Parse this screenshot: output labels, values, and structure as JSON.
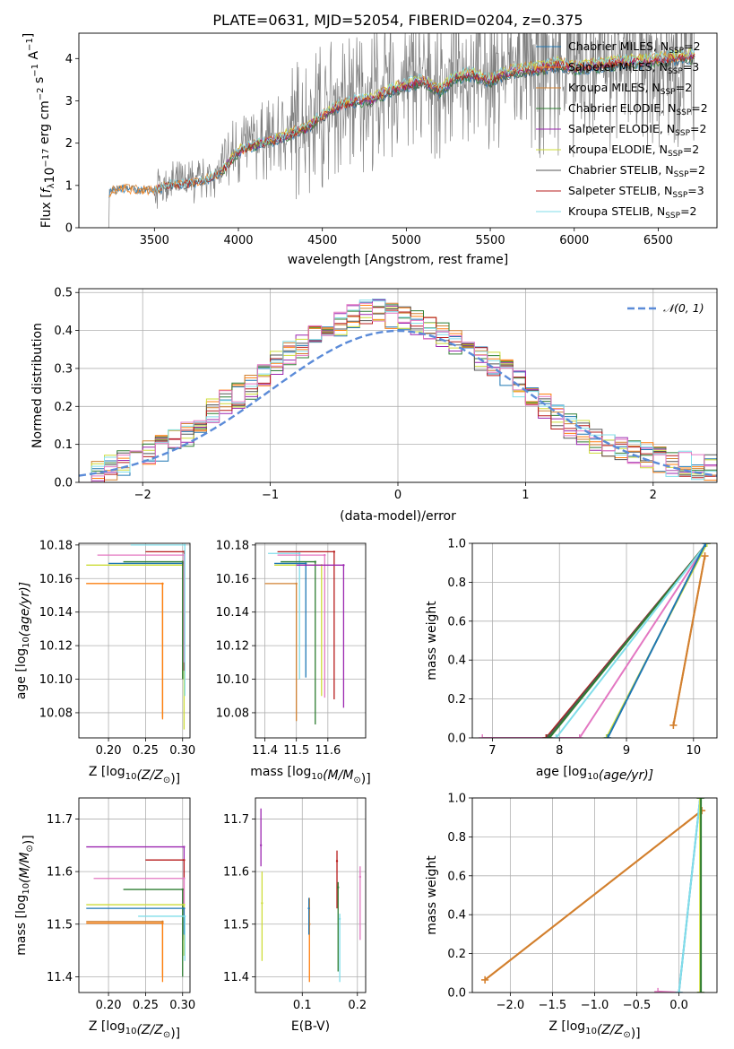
{
  "figure": {
    "title": "PLATE=0631, MJD=52054, FIBERID=0204, z=0.375"
  },
  "colors": {
    "chabrier_miles": "#1f77b4",
    "salpeter_miles": "#ff7f0e",
    "kroupa_miles": "#d08030",
    "chabrier_elodie": "#2e7d32",
    "salpeter_elodie": "#9c27b0",
    "kroupa_elodie": "#cddc39",
    "chabrier_stelib": "#555555",
    "salpeter_stelib": "#b71c1c",
    "kroupa_stelib": "#80deea",
    "pink": "#e377c2",
    "data": "#808080",
    "gauss": "#5b8bd8"
  },
  "chart_data": [
    {
      "id": "spectrum",
      "type": "line",
      "title": "PLATE=0631, MJD=52054, FIBERID=0204, z=0.375",
      "xlabel": "wavelength [Angstrom, rest frame]",
      "ylabel_parts": {
        "a": "Flux [",
        "b": "f",
        "c": "λ",
        "d": "10",
        "e": "−17",
        "f": " erg cm",
        "g": "−2",
        "h": " s",
        "i": "−1",
        "j": " A",
        "k": "−1",
        "l": "]"
      },
      "xlim": [
        3050,
        6850
      ],
      "ylim": [
        0,
        4.6
      ],
      "xticks": [
        3500,
        4000,
        4500,
        5000,
        5500,
        6000,
        6500
      ],
      "yticks": [
        0,
        1,
        2,
        3,
        4
      ],
      "grid": false,
      "legend_position": "top-right",
      "continuum": [
        [
          3230,
          0.85
        ],
        [
          3300,
          0.95
        ],
        [
          3400,
          0.9
        ],
        [
          3500,
          0.9
        ],
        [
          3600,
          1.05
        ],
        [
          3700,
          1.05
        ],
        [
          3800,
          1.15
        ],
        [
          3900,
          1.35
        ],
        [
          4000,
          1.85
        ],
        [
          4100,
          2.0
        ],
        [
          4200,
          2.1
        ],
        [
          4300,
          2.25
        ],
        [
          4400,
          2.4
        ],
        [
          4500,
          2.7
        ],
        [
          4600,
          2.95
        ],
        [
          4700,
          3.05
        ],
        [
          4800,
          3.1
        ],
        [
          4900,
          3.3
        ],
        [
          5000,
          3.45
        ],
        [
          5100,
          3.55
        ],
        [
          5200,
          3.3
        ],
        [
          5300,
          3.65
        ],
        [
          5400,
          3.7
        ],
        [
          5500,
          3.55
        ],
        [
          5600,
          3.75
        ],
        [
          5700,
          3.8
        ],
        [
          5800,
          3.85
        ],
        [
          5900,
          3.95
        ],
        [
          6000,
          3.85
        ],
        [
          6100,
          3.9
        ],
        [
          6200,
          3.95
        ],
        [
          6300,
          4.0
        ],
        [
          6400,
          4.0
        ],
        [
          6500,
          4.05
        ],
        [
          6600,
          4.1
        ],
        [
          6720,
          4.15
        ]
      ],
      "legend": [
        {
          "key": "chabrier_miles",
          "label": "Chabrier MILES, N",
          "sub": "SSP",
          "tail": "=2"
        },
        {
          "key": "salpeter_miles",
          "label": "Salpeter MILES, N",
          "sub": "SSP",
          "tail": "=3"
        },
        {
          "key": "kroupa_miles",
          "label": "Kroupa MILES, N",
          "sub": "SSP",
          "tail": "=2"
        },
        {
          "key": "chabrier_elodie",
          "label": "Chabrier ELODIE, N",
          "sub": "SSP",
          "tail": "=2"
        },
        {
          "key": "salpeter_elodie",
          "label": "Salpeter ELODIE, N",
          "sub": "SSP",
          "tail": "=2"
        },
        {
          "key": "kroupa_elodie",
          "label": "Kroupa ELODIE, N",
          "sub": "SSP",
          "tail": "=2"
        },
        {
          "key": "chabrier_stelib",
          "label": "Chabrier STELIB, N",
          "sub": "SSP",
          "tail": "=2"
        },
        {
          "key": "salpeter_stelib",
          "label": "Salpeter STELIB, N",
          "sub": "SSP",
          "tail": "=3"
        },
        {
          "key": "kroupa_stelib",
          "label": "Kroupa STELIB, N",
          "sub": "SSP",
          "tail": "=2"
        }
      ]
    },
    {
      "id": "residuals",
      "type": "line",
      "xlabel": "(data-model)/error",
      "ylabel": "Normed distribution",
      "xlim": [
        -2.5,
        2.5
      ],
      "ylim": [
        0,
        0.51
      ],
      "xticks": [
        -2,
        -1,
        0,
        1,
        2
      ],
      "yticks": [
        0.0,
        0.1,
        0.2,
        0.3,
        0.4,
        0.5
      ],
      "grid": true,
      "legend_position": "top-right",
      "gauss_legend": "𝒩(0, 1)",
      "bin_edges_start": -2.5,
      "bin_width": 0.1,
      "base_histogram": [
        0.02,
        0.03,
        0.04,
        0.05,
        0.06,
        0.08,
        0.09,
        0.11,
        0.13,
        0.16,
        0.19,
        0.21,
        0.23,
        0.25,
        0.28,
        0.31,
        0.34,
        0.36,
        0.38,
        0.4,
        0.42,
        0.44,
        0.45,
        0.45,
        0.44,
        0.43,
        0.42,
        0.41,
        0.39,
        0.37,
        0.35,
        0.33,
        0.31,
        0.29,
        0.26,
        0.23,
        0.2,
        0.17,
        0.15,
        0.13,
        0.11,
        0.1,
        0.09,
        0.08,
        0.07,
        0.06,
        0.05,
        0.05,
        0.04,
        0.04
      ]
    },
    {
      "id": "age_vs_Z",
      "type": "scatter",
      "xlabel_parts": {
        "a": "Z [log",
        "b": "10",
        "c": "(Z/Z",
        "d": "⊙",
        "e": ")]"
      },
      "ylabel_parts": {
        "a": "age  [log",
        "b": "10",
        "c": "(age/yr)]"
      },
      "xlim": [
        0.16,
        0.31
      ],
      "ylim": [
        10.065,
        10.181
      ],
      "xticks": [
        0.2,
        0.25,
        0.3
      ],
      "yticks": [
        10.08,
        10.1,
        10.12,
        10.14,
        10.16,
        10.18
      ],
      "grid": true,
      "points": [
        {
          "key": "kroupa_miles",
          "x": 0.273,
          "y": 10.157,
          "x_lo": 0.17,
          "y_lo": 10.077
        },
        {
          "key": "salpeter_miles",
          "x": 0.273,
          "y": 10.157,
          "x_lo": 0.17,
          "y_lo": 10.076
        },
        {
          "key": "chabrier_miles",
          "x": 0.302,
          "y": 10.169,
          "x_lo": 0.2,
          "y_lo": 10.1
        },
        {
          "key": "kroupa_elodie",
          "x": 0.302,
          "y": 10.168,
          "x_lo": 0.17,
          "y_lo": 10.07
        },
        {
          "key": "chabrier_elodie",
          "x": 0.3,
          "y": 10.17,
          "x_lo": 0.22,
          "y_lo": 10.1
        },
        {
          "key": "salpeter_stelib",
          "x": 0.302,
          "y": 10.176,
          "x_lo": 0.25,
          "y_lo": 10.105
        },
        {
          "key": "pink",
          "x": 0.302,
          "y": 10.174,
          "x_lo": 0.185,
          "y_lo": 10.11
        },
        {
          "key": "kroupa_stelib",
          "x": 0.303,
          "y": 10.18,
          "x_lo": 0.23,
          "y_lo": 10.09
        }
      ]
    },
    {
      "id": "age_vs_mass",
      "type": "scatter",
      "xlabel_parts": {
        "a": "mass [log",
        "b": "10",
        "c": "(M/M",
        "d": "⊙",
        "e": ")]"
      },
      "xlim": [
        11.37,
        11.72
      ],
      "ylim": [
        10.065,
        10.181
      ],
      "xticks": [
        11.4,
        11.5,
        11.6
      ],
      "yticks": [
        10.08,
        10.1,
        10.12,
        10.14,
        10.16,
        10.18
      ],
      "grid": true,
      "points": [
        {
          "key": "kroupa_miles",
          "x": 11.5,
          "y": 10.157,
          "x_lo": 11.4,
          "y_lo": 10.075
        },
        {
          "key": "kroupa_stelib",
          "x": 11.51,
          "y": 10.175,
          "x_lo": 11.41,
          "y_lo": 10.1
        },
        {
          "key": "chabrier_miles",
          "x": 11.53,
          "y": 10.169,
          "x_lo": 11.43,
          "y_lo": 10.101
        },
        {
          "key": "chabrier_elodie",
          "x": 11.56,
          "y": 10.17,
          "x_lo": 11.45,
          "y_lo": 10.073
        },
        {
          "key": "kroupa_elodie",
          "x": 11.58,
          "y": 10.168,
          "x_lo": 11.43,
          "y_lo": 10.09
        },
        {
          "key": "pink",
          "x": 11.59,
          "y": 10.174,
          "x_lo": 11.44,
          "y_lo": 10.089
        },
        {
          "key": "salpeter_stelib",
          "x": 11.62,
          "y": 10.176,
          "x_lo": 11.44,
          "y_lo": 10.088
        },
        {
          "key": "salpeter_elodie",
          "x": 11.65,
          "y": 10.168,
          "x_lo": 11.5,
          "y_lo": 10.083
        }
      ]
    },
    {
      "id": "mass_weight_vs_age",
      "type": "line",
      "xlabel_parts": {
        "a": "age  [log",
        "b": "10",
        "c": "(age/yr)]"
      },
      "ylabel": "mass weight",
      "xlim": [
        6.7,
        10.35
      ],
      "ylim": [
        0,
        1.0
      ],
      "xticks": [
        7,
        8,
        9,
        10
      ],
      "yticks": [
        0.0,
        0.2,
        0.4,
        0.6,
        0.8,
        1.0
      ],
      "grid": true,
      "lines": [
        {
          "key": "pink",
          "x": [
            6.85,
            8.3,
            10.2
          ],
          "y": [
            0.0,
            0.0,
            1.0
          ]
        },
        {
          "key": "salpeter_stelib",
          "x": [
            7.8,
            10.2
          ],
          "y": [
            0.0,
            1.0
          ]
        },
        {
          "key": "chabrier_stelib",
          "x": [
            7.82,
            10.2
          ],
          "y": [
            0.0,
            1.0
          ]
        },
        {
          "key": "chabrier_elodie",
          "x": [
            7.85,
            10.2
          ],
          "y": [
            0.0,
            1.0
          ]
        },
        {
          "key": "kroupa_stelib",
          "x": [
            7.95,
            10.2
          ],
          "y": [
            0.0,
            1.0
          ]
        },
        {
          "key": "kroupa_elodie",
          "x": [
            8.7,
            10.2
          ],
          "y": [
            0.0,
            1.0
          ]
        },
        {
          "key": "chabrier_miles",
          "x": [
            8.72,
            10.18
          ],
          "y": [
            0.0,
            1.0
          ]
        },
        {
          "key": "salpeter_miles",
          "x": [
            9.7,
            10.17
          ],
          "y": [
            0.065,
            0.935
          ]
        },
        {
          "key": "kroupa_miles",
          "x": [
            9.7,
            10.17
          ],
          "y": [
            0.065,
            0.935
          ]
        }
      ]
    },
    {
      "id": "mass_vs_Z",
      "type": "scatter",
      "xlabel_parts": {
        "a": "Z [log",
        "b": "10",
        "c": "(Z/Z",
        "d": "⊙",
        "e": ")]"
      },
      "ylabel_parts": {
        "a": "mass [log",
        "b": "10",
        "c": "(M/M",
        "d": "⊙",
        "e": ")]"
      },
      "xlim": [
        0.16,
        0.31
      ],
      "ylim": [
        11.37,
        11.74
      ],
      "xticks": [
        0.2,
        0.25,
        0.3
      ],
      "yticks": [
        11.4,
        11.5,
        11.6,
        11.7
      ],
      "grid": true,
      "points": [
        {
          "key": "salpeter_elodie",
          "x": 0.302,
          "y": 11.647,
          "x_lo": 0.17,
          "y_lo": 11.47
        },
        {
          "key": "salpeter_stelib",
          "x": 0.302,
          "y": 11.622,
          "x_lo": 0.25,
          "y_lo": 11.53
        },
        {
          "key": "pink",
          "x": 0.302,
          "y": 11.587,
          "x_lo": 0.18,
          "y_lo": 11.48
        },
        {
          "key": "chabrier_elodie",
          "x": 0.3,
          "y": 11.566,
          "x_lo": 0.22,
          "y_lo": 11.4
        },
        {
          "key": "kroupa_elodie",
          "x": 0.302,
          "y": 11.537,
          "x_lo": 0.17,
          "y_lo": 11.44
        },
        {
          "key": "chabrier_miles",
          "x": 0.302,
          "y": 11.53,
          "x_lo": 0.17,
          "y_lo": 11.48
        },
        {
          "key": "kroupa_stelib",
          "x": 0.303,
          "y": 11.515,
          "x_lo": 0.24,
          "y_lo": 11.43
        },
        {
          "key": "kroupa_miles",
          "x": 0.273,
          "y": 11.505,
          "x_lo": 0.17,
          "y_lo": 11.4
        },
        {
          "key": "salpeter_miles",
          "x": 0.273,
          "y": 11.502,
          "x_lo": 0.17,
          "y_lo": 11.39
        }
      ]
    },
    {
      "id": "mass_vs_ebv",
      "type": "scatter",
      "xlabel": "E(B-V)",
      "xlim": [
        0.015,
        0.215
      ],
      "ylim": [
        11.37,
        11.74
      ],
      "xticks": [
        0.1,
        0.2
      ],
      "yticks": [
        11.4,
        11.5,
        11.6,
        11.7
      ],
      "grid": true,
      "points": [
        {
          "key": "salpeter_elodie",
          "x": 0.025,
          "y": 11.65,
          "y_lo": 11.61,
          "y_hi": 11.72
        },
        {
          "key": "kroupa_elodie",
          "x": 0.027,
          "y": 11.54,
          "y_lo": 11.43,
          "y_hi": 11.6
        },
        {
          "key": "salpeter_miles",
          "x": 0.113,
          "y": 11.5,
          "y_lo": 11.39,
          "y_hi": 11.55
        },
        {
          "key": "chabrier_miles",
          "x": 0.112,
          "y": 11.53,
          "y_lo": 11.48,
          "y_hi": 11.55
        },
        {
          "key": "salpeter_stelib",
          "x": 0.163,
          "y": 11.62,
          "y_lo": 11.53,
          "y_hi": 11.64
        },
        {
          "key": "chabrier_elodie",
          "x": 0.165,
          "y": 11.57,
          "y_lo": 11.41,
          "y_hi": 11.58
        },
        {
          "key": "kroupa_stelib",
          "x": 0.168,
          "y": 11.51,
          "y_lo": 11.39,
          "y_hi": 11.52
        },
        {
          "key": "pink",
          "x": 0.205,
          "y": 11.59,
          "y_lo": 11.47,
          "y_hi": 11.61
        }
      ]
    },
    {
      "id": "mass_weight_vs_Z",
      "type": "line",
      "xlabel_parts": {
        "a": "Z [log",
        "b": "10",
        "c": "(Z/Z",
        "d": "⊙",
        "e": ")]"
      },
      "ylabel": "mass weight",
      "xlim": [
        -2.45,
        0.45
      ],
      "ylim": [
        0,
        1.0
      ],
      "xticks": [
        -2.0,
        -1.5,
        -1.0,
        -0.5,
        0.0
      ],
      "yticks": [
        0.0,
        0.2,
        0.4,
        0.6,
        0.8,
        1.0
      ],
      "grid": true,
      "lines": [
        {
          "key": "salpeter_miles",
          "x": [
            -2.3,
            0.27
          ],
          "y": [
            0.065,
            0.935
          ]
        },
        {
          "key": "kroupa_miles",
          "x": [
            -2.3,
            0.27
          ],
          "y": [
            0.065,
            0.935
          ]
        },
        {
          "key": "pink",
          "x": [
            -0.25,
            0.0
          ],
          "y": [
            0.005,
            0.0
          ]
        },
        {
          "key": "chabrier_miles",
          "x": [
            0.0,
            0.25
          ],
          "y": [
            0.0,
            1.0
          ]
        },
        {
          "key": "kroupa_stelib",
          "x": [
            0.0,
            0.25
          ],
          "y": [
            0.0,
            1.0
          ]
        },
        {
          "key": "kroupa_elodie",
          "x": [
            0.25,
            0.25
          ],
          "y": [
            0.0,
            1.0
          ]
        },
        {
          "key": "chabrier_elodie",
          "x": [
            0.26,
            0.26
          ],
          "y": [
            0.0,
            1.0
          ]
        }
      ]
    }
  ]
}
